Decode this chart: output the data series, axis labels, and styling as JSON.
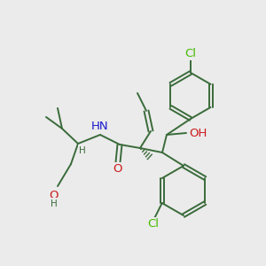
{
  "bg_color": "#ebebeb",
  "bond_color": "#3a6b3a",
  "bond_width": 1.4,
  "atom_colors": {
    "C": "#3a6b3a",
    "N": "#1a1acc",
    "O": "#cc1a1a",
    "Cl": "#44bb00",
    "H": "#3a6b3a"
  },
  "font_size": 8.5,
  "font_size_label": 9.5
}
